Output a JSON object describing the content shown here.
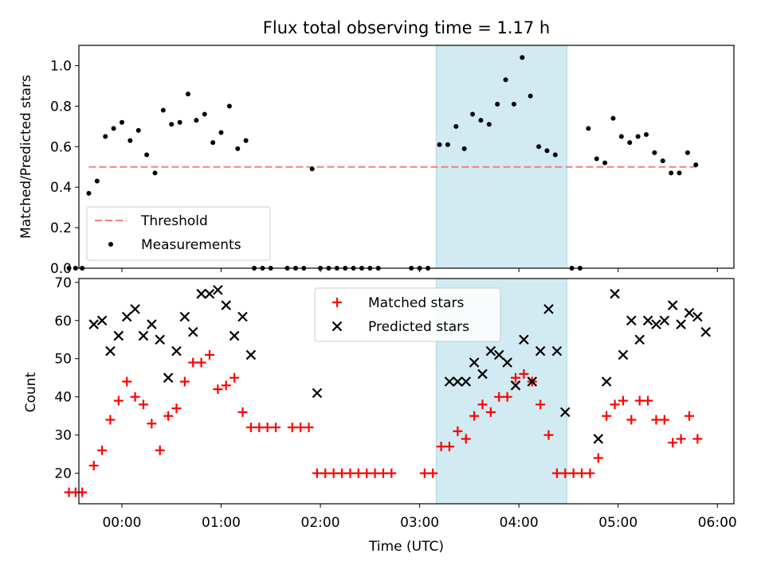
{
  "figure": {
    "title": "Flux total observing time = 1.17 h",
    "xlabel": "Time (UTC)",
    "colors": {
      "threshold": "#f08080",
      "measurement": "#000000",
      "matched": "#ff0000",
      "predicted": "#000000",
      "shade": "#add8e6"
    }
  },
  "chart_data": [
    {
      "type": "scatter",
      "ylabel": "Matched/Predicted stars",
      "ylim": [
        0,
        1.1
      ],
      "yticks": [
        "0.0",
        "0.2",
        "0.4",
        "0.6",
        "0.8",
        "1.0"
      ],
      "xlim_minutes": [
        -26,
        370
      ],
      "highlight_span_minutes": [
        190,
        269
      ],
      "threshold": 0.5,
      "legend": {
        "position": "lower-left",
        "entries": [
          "Threshold",
          "Measurements"
        ]
      },
      "series": [
        {
          "name": "Measurements",
          "points": [
            [
              -32,
              0
            ],
            [
              -28,
              0
            ],
            [
              -24,
              0
            ],
            [
              -20,
              0.37
            ],
            [
              -15,
              0.43
            ],
            [
              -10,
              0.65
            ],
            [
              -5,
              0.69
            ],
            [
              0,
              0.72
            ],
            [
              5,
              0.63
            ],
            [
              10,
              0.68
            ],
            [
              15,
              0.56
            ],
            [
              20,
              0.47
            ],
            [
              25,
              0.78
            ],
            [
              30,
              0.71
            ],
            [
              35,
              0.72
            ],
            [
              40,
              0.86
            ],
            [
              45,
              0.73
            ],
            [
              50,
              0.76
            ],
            [
              55,
              0.62
            ],
            [
              60,
              0.67
            ],
            [
              65,
              0.8
            ],
            [
              70,
              0.59
            ],
            [
              75,
              0.63
            ],
            [
              80,
              0
            ],
            [
              85,
              0
            ],
            [
              90,
              0
            ],
            [
              100,
              0
            ],
            [
              105,
              0
            ],
            [
              110,
              0
            ],
            [
              115,
              0.49
            ],
            [
              120,
              0
            ],
            [
              125,
              0
            ],
            [
              130,
              0
            ],
            [
              135,
              0
            ],
            [
              140,
              0
            ],
            [
              145,
              0
            ],
            [
              150,
              0
            ],
            [
              155,
              0
            ],
            [
              175,
              0
            ],
            [
              180,
              0
            ],
            [
              185,
              0
            ],
            [
              192,
              0.61
            ],
            [
              197,
              0.61
            ],
            [
              202,
              0.7
            ],
            [
              207,
              0.59
            ],
            [
              212,
              0.76
            ],
            [
              217,
              0.73
            ],
            [
              222,
              0.71
            ],
            [
              227,
              0.81
            ],
            [
              232,
              0.93
            ],
            [
              237,
              0.81
            ],
            [
              242,
              1.04
            ],
            [
              247,
              0.85
            ],
            [
              252,
              0.6
            ],
            [
              257,
              0.58
            ],
            [
              262,
              0.56
            ],
            [
              272,
              0
            ],
            [
              277,
              0
            ],
            [
              282,
              0.69
            ],
            [
              287,
              0.54
            ],
            [
              292,
              0.52
            ],
            [
              297,
              0.74
            ],
            [
              302,
              0.65
            ],
            [
              307,
              0.62
            ],
            [
              312,
              0.65
            ],
            [
              317,
              0.66
            ],
            [
              322,
              0.57
            ],
            [
              327,
              0.53
            ],
            [
              332,
              0.47
            ],
            [
              337,
              0.47
            ],
            [
              342,
              0.57
            ],
            [
              347,
              0.51
            ]
          ]
        }
      ]
    },
    {
      "type": "scatter",
      "ylabel": "Count",
      "ylim": [
        12,
        71
      ],
      "yticks": [
        "20",
        "30",
        "40",
        "50",
        "60",
        "70"
      ],
      "xlim_minutes": [
        -26,
        370
      ],
      "highlight_span_minutes": [
        190,
        269
      ],
      "xticks": [
        "00:00",
        "01:00",
        "02:00",
        "03:00",
        "04:00",
        "05:00",
        "06:00"
      ],
      "xtick_minutes": [
        0,
        60,
        120,
        180,
        240,
        300,
        360
      ],
      "legend": {
        "position": "top-center",
        "entries": [
          "Matched stars",
          "Predicted stars"
        ]
      },
      "series": [
        {
          "name": "Matched stars",
          "points": [
            [
              -32,
              15
            ],
            [
              -28,
              15
            ],
            [
              -24,
              15
            ],
            [
              -17,
              22
            ],
            [
              -12,
              26
            ],
            [
              -7,
              34
            ],
            [
              -2,
              39
            ],
            [
              3,
              44
            ],
            [
              8,
              40
            ],
            [
              13,
              38
            ],
            [
              18,
              33
            ],
            [
              23,
              26
            ],
            [
              28,
              35
            ],
            [
              33,
              37
            ],
            [
              38,
              44
            ],
            [
              43,
              49
            ],
            [
              48,
              49
            ],
            [
              53,
              51
            ],
            [
              58,
              42
            ],
            [
              63,
              43
            ],
            [
              68,
              45
            ],
            [
              73,
              36
            ],
            [
              78,
              32
            ],
            [
              83,
              32
            ],
            [
              88,
              32
            ],
            [
              93,
              32
            ],
            [
              103,
              32
            ],
            [
              108,
              32
            ],
            [
              113,
              32
            ],
            [
              118,
              20
            ],
            [
              123,
              20
            ],
            [
              128,
              20
            ],
            [
              133,
              20
            ],
            [
              138,
              20
            ],
            [
              143,
              20
            ],
            [
              148,
              20
            ],
            [
              153,
              20
            ],
            [
              158,
              20
            ],
            [
              163,
              20
            ],
            [
              183,
              20
            ],
            [
              188,
              20
            ],
            [
              193,
              27
            ],
            [
              198,
              27
            ],
            [
              203,
              31
            ],
            [
              208,
              29
            ],
            [
              213,
              35
            ],
            [
              218,
              38
            ],
            [
              223,
              36
            ],
            [
              228,
              40
            ],
            [
              233,
              40
            ],
            [
              238,
              45
            ],
            [
              243,
              46
            ],
            [
              248,
              44
            ],
            [
              253,
              38
            ],
            [
              258,
              30
            ],
            [
              263,
              20
            ],
            [
              268,
              20
            ],
            [
              273,
              20
            ],
            [
              278,
              20
            ],
            [
              283,
              20
            ],
            [
              288,
              24
            ],
            [
              293,
              35
            ],
            [
              298,
              38
            ],
            [
              303,
              39
            ],
            [
              308,
              34
            ],
            [
              313,
              39
            ],
            [
              318,
              39
            ],
            [
              323,
              34
            ],
            [
              328,
              34
            ],
            [
              333,
              28
            ],
            [
              338,
              29
            ],
            [
              343,
              35
            ],
            [
              348,
              29
            ]
          ]
        },
        {
          "name": "Predicted stars",
          "points": [
            [
              -17,
              59
            ],
            [
              -12,
              60
            ],
            [
              -7,
              52
            ],
            [
              -2,
              56
            ],
            [
              3,
              61
            ],
            [
              8,
              63
            ],
            [
              13,
              56
            ],
            [
              18,
              59
            ],
            [
              23,
              55
            ],
            [
              28,
              45
            ],
            [
              33,
              52
            ],
            [
              38,
              61
            ],
            [
              43,
              57
            ],
            [
              48,
              67
            ],
            [
              53,
              67
            ],
            [
              58,
              68
            ],
            [
              63,
              64
            ],
            [
              68,
              56
            ],
            [
              73,
              61
            ],
            [
              78,
              51
            ],
            [
              118,
              41
            ],
            [
              198,
              44
            ],
            [
              203,
              44
            ],
            [
              208,
              44
            ],
            [
              213,
              49
            ],
            [
              218,
              46
            ],
            [
              223,
              52
            ],
            [
              228,
              51
            ],
            [
              233,
              49
            ],
            [
              238,
              43
            ],
            [
              243,
              55
            ],
            [
              248,
              44
            ],
            [
              253,
              52
            ],
            [
              258,
              63
            ],
            [
              263,
              52
            ],
            [
              268,
              36
            ],
            [
              288,
              29
            ],
            [
              293,
              44
            ],
            [
              298,
              67
            ],
            [
              303,
              51
            ],
            [
              308,
              60
            ],
            [
              313,
              55
            ],
            [
              318,
              60
            ],
            [
              323,
              59
            ],
            [
              328,
              60
            ],
            [
              333,
              64
            ],
            [
              338,
              59
            ],
            [
              343,
              62
            ],
            [
              348,
              61
            ],
            [
              353,
              57
            ]
          ]
        }
      ]
    }
  ]
}
